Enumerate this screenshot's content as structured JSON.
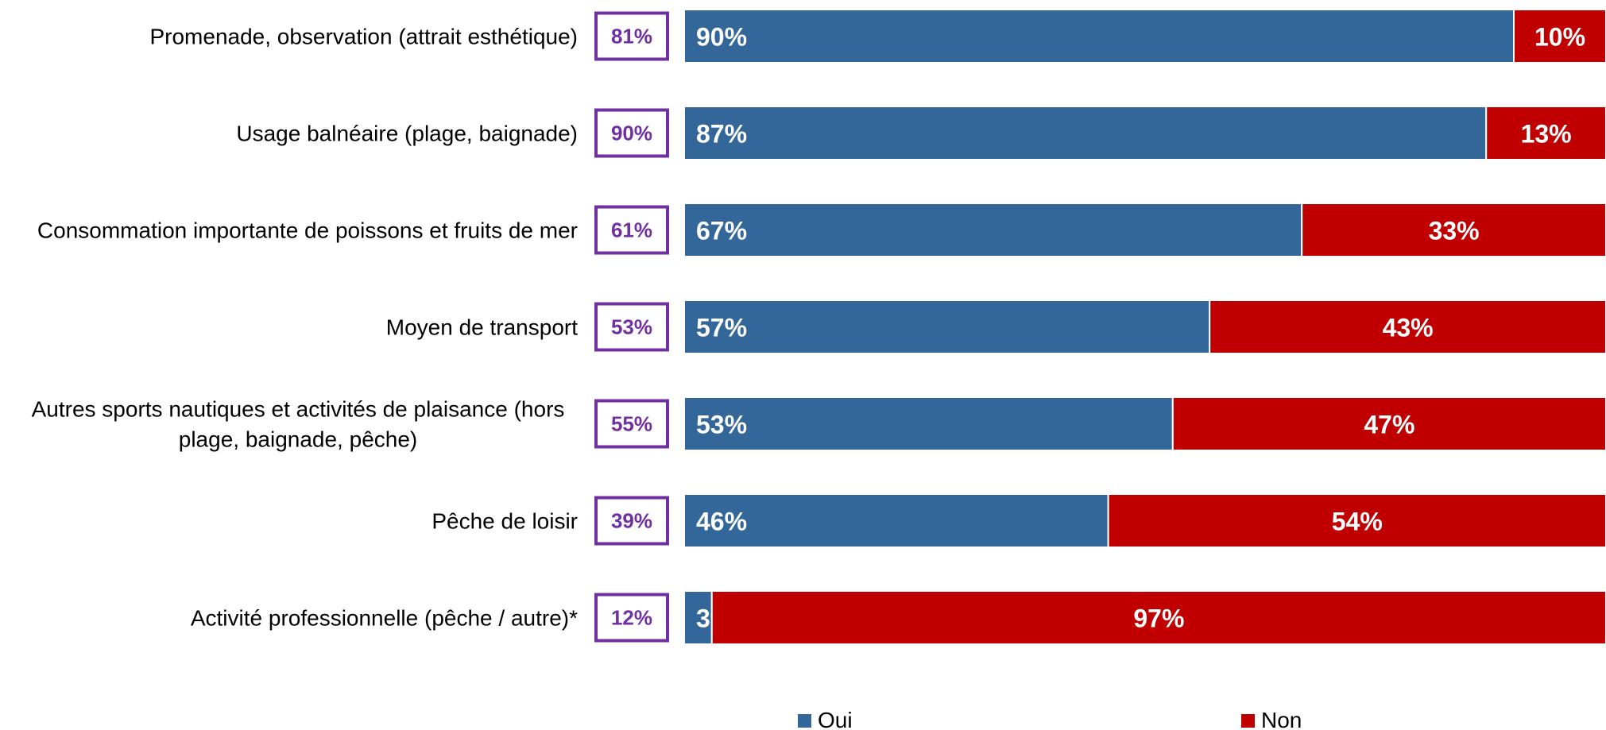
{
  "colors": {
    "oui": "#336699",
    "non": "#C00000",
    "box_border": "#7030A0",
    "box_text": "#7030A0"
  },
  "chart_data": {
    "type": "bar",
    "orientation": "horizontal",
    "stacked": true,
    "percent_stacked": true,
    "categories": [
      [
        "Promenade, observation (attrait esthétique)"
      ],
      [
        "Usage balnéaire (plage, baignade)"
      ],
      [
        "Consommation importante de poissons et fruits de mer"
      ],
      [
        "Moyen de transport"
      ],
      [
        "Autres sports nautiques et activités de plaisance (hors",
        "plage, baignade, pêche)"
      ],
      [
        "Pêche de loisir"
      ],
      [
        "Activité professionnelle (pêche / autre)*"
      ]
    ],
    "series": [
      {
        "name": "Oui",
        "values": [
          90,
          87,
          67,
          57,
          53,
          46,
          3
        ],
        "labels": [
          "90%",
          "87%",
          "67%",
          "57%",
          "53%",
          "46%",
          "3%"
        ]
      },
      {
        "name": "Non",
        "values": [
          10,
          13,
          33,
          43,
          47,
          54,
          97
        ],
        "labels": [
          "10%",
          "13%",
          "33%",
          "43%",
          "47%",
          "54%",
          "97%"
        ]
      }
    ],
    "box_values": [
      "81%",
      "90%",
      "61%",
      "53%",
      "55%",
      "39%",
      "12%"
    ],
    "xlim": [
      0,
      100
    ],
    "grid": false,
    "legend": {
      "position": "bottom",
      "entries": [
        "Oui",
        "Non"
      ]
    }
  }
}
